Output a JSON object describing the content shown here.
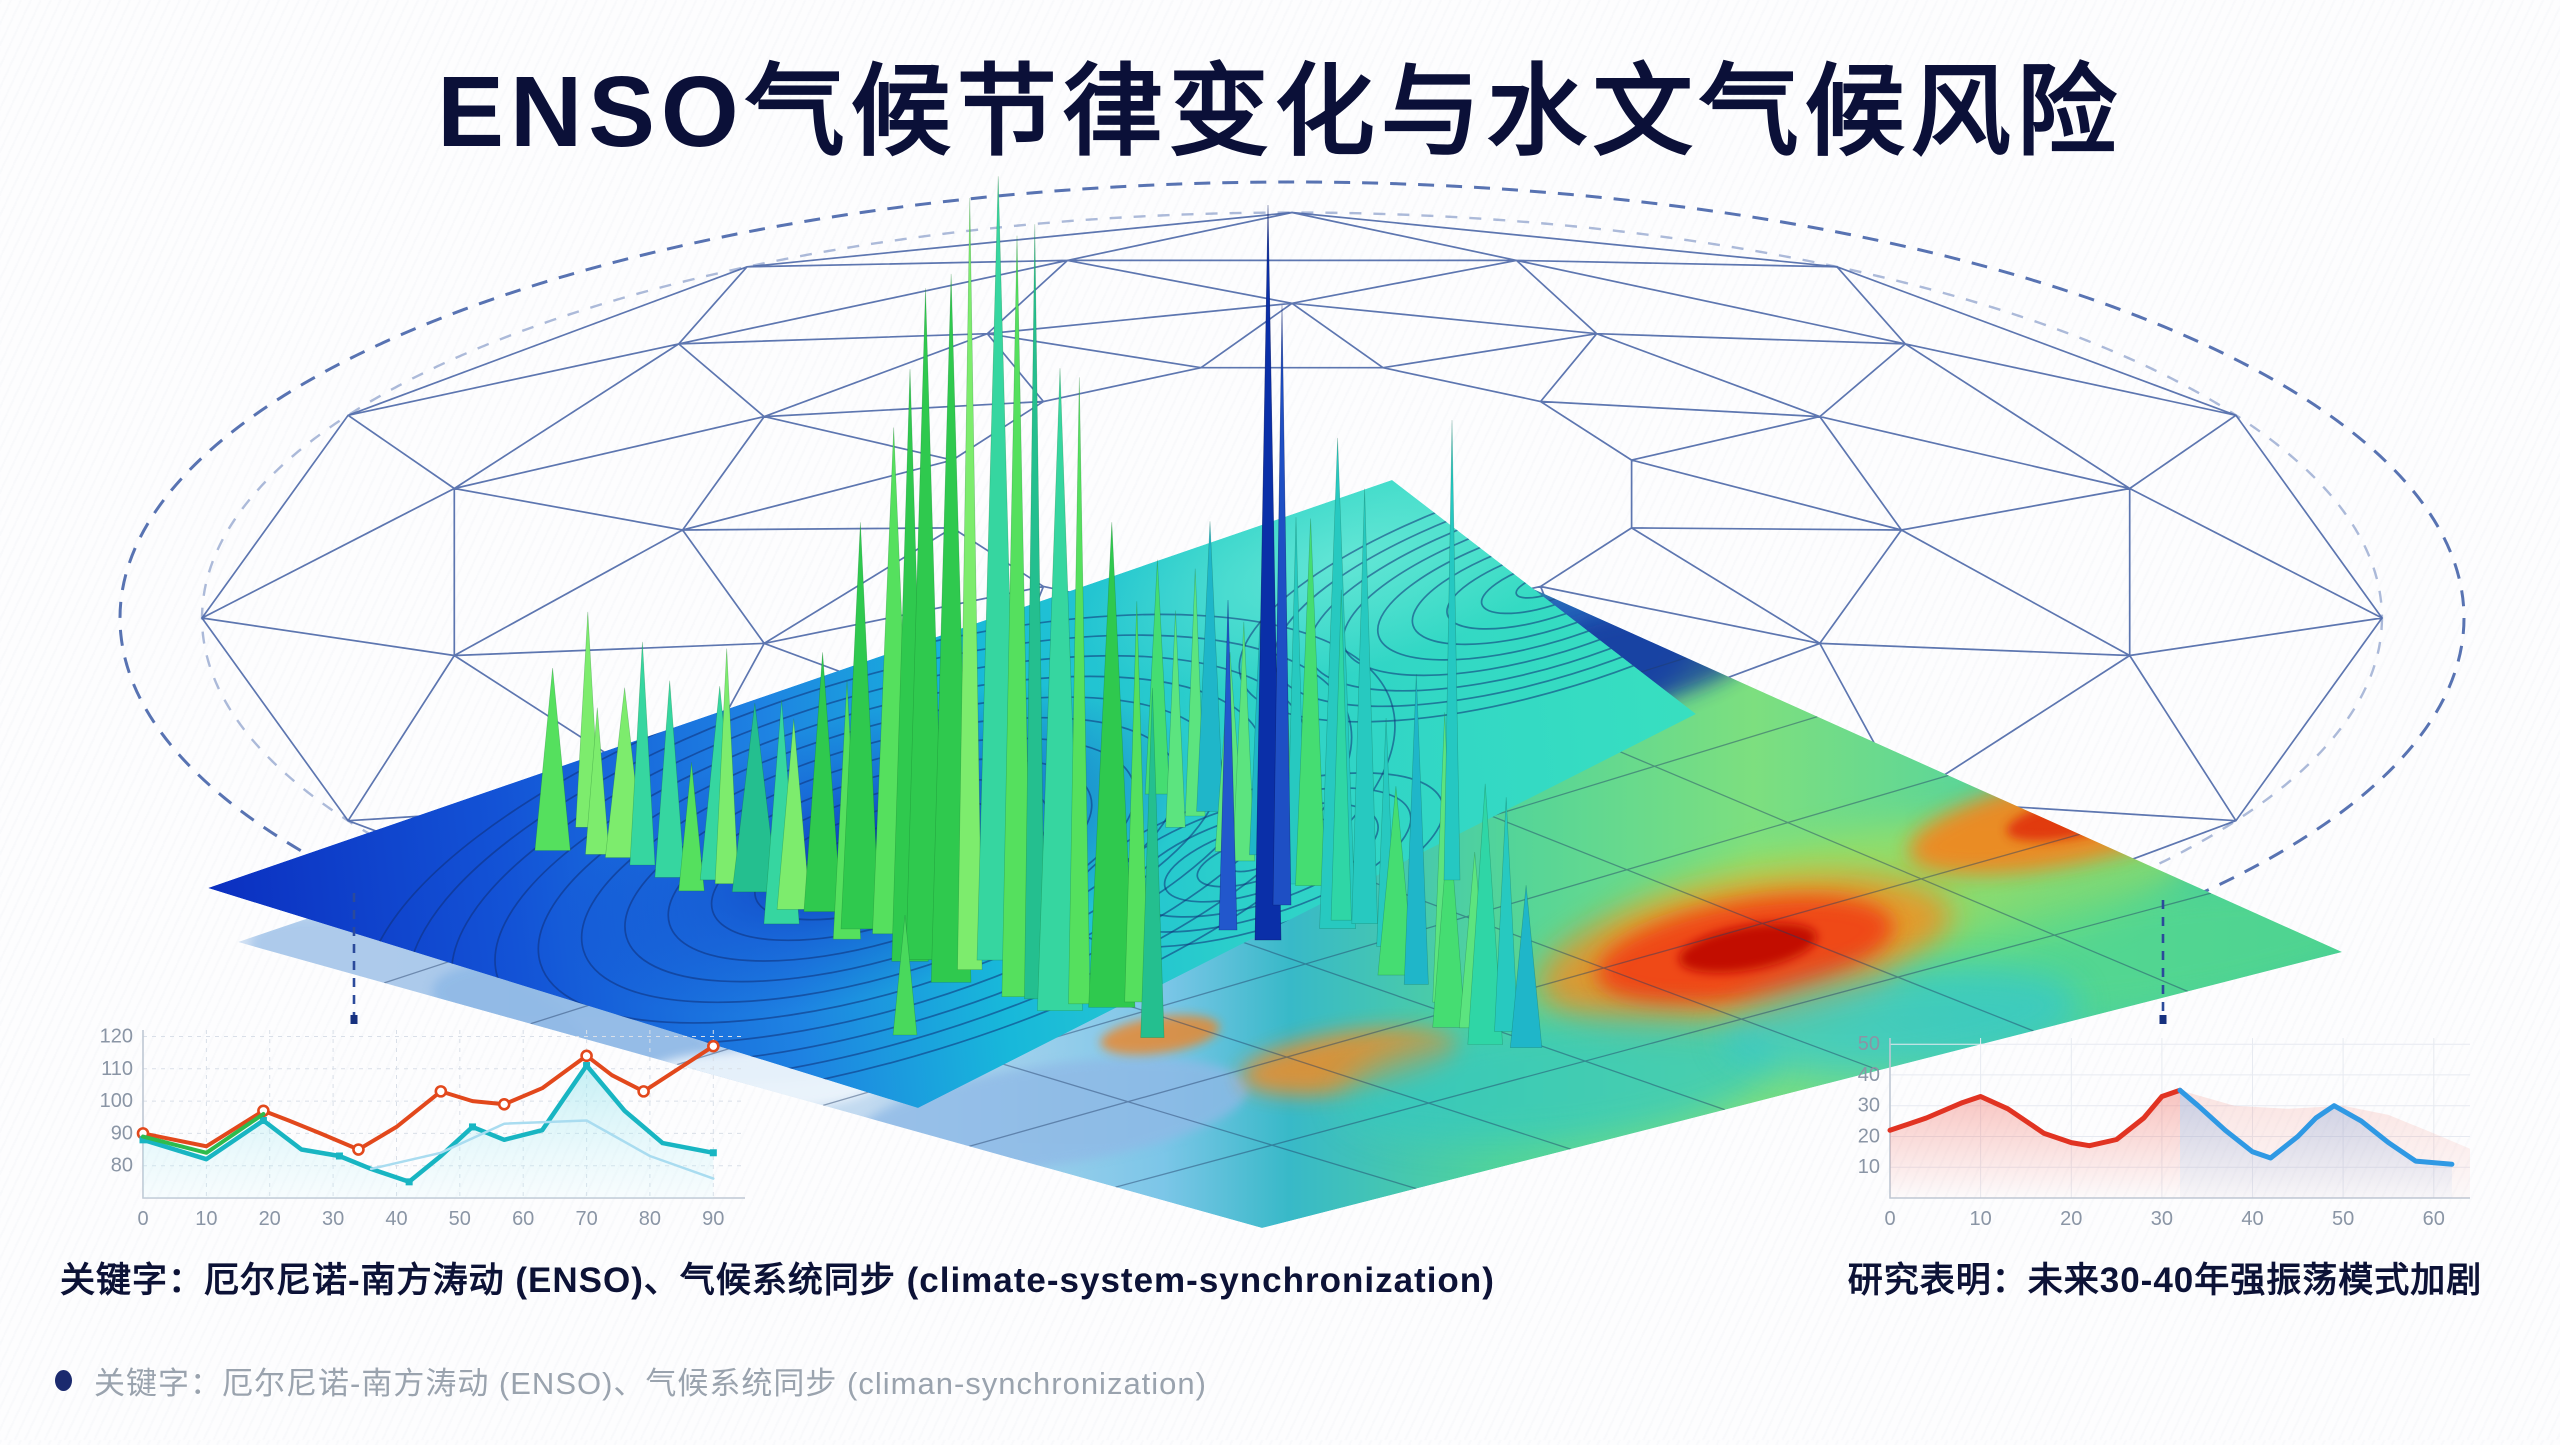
{
  "slide": {
    "title": "ENSO气候节律变化与水文气候风险",
    "footnote_text": "关键字：厄尔尼诺-南方涛动 (ENSO)、气候系统同步 (climan-synchronization)"
  },
  "captions": {
    "left": "关键字：厄尔尼诺-南方涛动 (ENSO)、气候系统同步 (climate-system-synchronization)",
    "right": "研究表明：未来30-40年强振荡模式加剧"
  },
  "colors": {
    "title": "#0b1038",
    "caption": "#0c1236",
    "footnote_text": "#9aa3ae",
    "bullet": "#1b2a6e",
    "mesh": "#30509a",
    "dashed_ellipse": "#3b5aa5",
    "surface_deep_blue": "#0b2fc0",
    "surface_teal": "#2fd0bf",
    "peaks_green": "#3fd957",
    "peaks_navy": "#0a2fa8",
    "heat_red": "#e03010",
    "heat_orange": "#f5831f",
    "map_pale_blue": "#cfe1f4"
  },
  "diagram": {
    "elements": [
      "geodesic-dome-wireframe",
      "dashed-ellipse-boundary",
      "contour-flow-surface",
      "spectral-peaks",
      "sst-anomaly-heatmap",
      "world-map-layer",
      "dropline-left",
      "dropline-right"
    ]
  },
  "chart_data": [
    {
      "type": "line",
      "position": "bottom-left",
      "title": "",
      "xlabel": "",
      "ylabel": "",
      "xlim": [
        0,
        95
      ],
      "ylim": [
        70,
        122
      ],
      "xticks": [
        0,
        10,
        20,
        30,
        40,
        50,
        60,
        70,
        80,
        90
      ],
      "yticks": [
        80,
        90,
        100,
        110,
        120
      ],
      "grid": true,
      "series": [
        {
          "name": "oscillation-index-red",
          "color": "#e2481c",
          "width": 4,
          "marker": "circle-open",
          "markers": [
            0,
            2,
            5,
            7,
            9,
            11,
            13,
            14
          ],
          "x": [
            0,
            10,
            19,
            23,
            28,
            34,
            40,
            47,
            52,
            57,
            63,
            70,
            74,
            79,
            90
          ],
          "y": [
            90,
            86,
            97,
            94,
            90,
            85,
            92,
            103,
            100,
            99,
            104,
            114,
            108,
            103,
            117
          ]
        },
        {
          "name": "oscillation-index-teal",
          "color": "#18b5c2",
          "width": 4.5,
          "fill": "cyan-fade",
          "marker": "square",
          "markers": [
            0,
            2,
            4,
            6,
            8,
            11,
            14
          ],
          "x": [
            0,
            10,
            19,
            25,
            31,
            36,
            42,
            47,
            52,
            57,
            63,
            70,
            76,
            82,
            90
          ],
          "y": [
            88,
            82,
            94,
            85,
            83,
            79,
            75,
            83,
            92,
            88,
            91,
            111,
            97,
            87,
            84
          ]
        },
        {
          "name": "oscillation-index-green",
          "color": "#2dbb4d",
          "width": 4,
          "x": [
            0,
            10,
            19
          ],
          "y": [
            89,
            84,
            96
          ]
        },
        {
          "name": "secondary-lightblue",
          "color": "#a9dcf0",
          "width": 2.5,
          "x": [
            36,
            47,
            57,
            70,
            80,
            90
          ],
          "y": [
            79,
            84,
            93,
            94,
            83,
            76
          ]
        }
      ]
    },
    {
      "type": "area",
      "position": "bottom-right",
      "title": "",
      "xlabel": "",
      "ylabel": "",
      "xlim": [
        0,
        64
      ],
      "ylim": [
        0,
        52
      ],
      "xticks": [
        0,
        10,
        20,
        30,
        40,
        50,
        60
      ],
      "yticks": [
        10,
        20,
        30,
        40,
        50
      ],
      "grid": true,
      "series": [
        {
          "name": "forecast-band-pink",
          "color": "none",
          "width": 0,
          "fill": "pink-faint",
          "x": [
            32,
            38,
            44,
            50,
            55,
            60,
            64
          ],
          "y": [
            35,
            30,
            29,
            30,
            27,
            21,
            16
          ]
        },
        {
          "name": "historical-red",
          "color": "#e13322",
          "width": 5,
          "fill": "pink-fade",
          "x": [
            0,
            4,
            8,
            10,
            13,
            17,
            20,
            22,
            25,
            28,
            30,
            32
          ],
          "y": [
            22,
            26,
            31,
            33,
            29,
            21,
            18,
            17,
            19,
            26,
            33,
            35
          ]
        },
        {
          "name": "future-blue",
          "color": "#2f99e4",
          "width": 5,
          "fill": "blue-fade",
          "x": [
            32,
            34,
            37,
            40,
            42,
            45,
            47,
            49,
            52,
            55,
            58,
            62
          ],
          "y": [
            35,
            30,
            22,
            15,
            13,
            20,
            26,
            30,
            25,
            18,
            12,
            11
          ]
        }
      ]
    }
  ]
}
